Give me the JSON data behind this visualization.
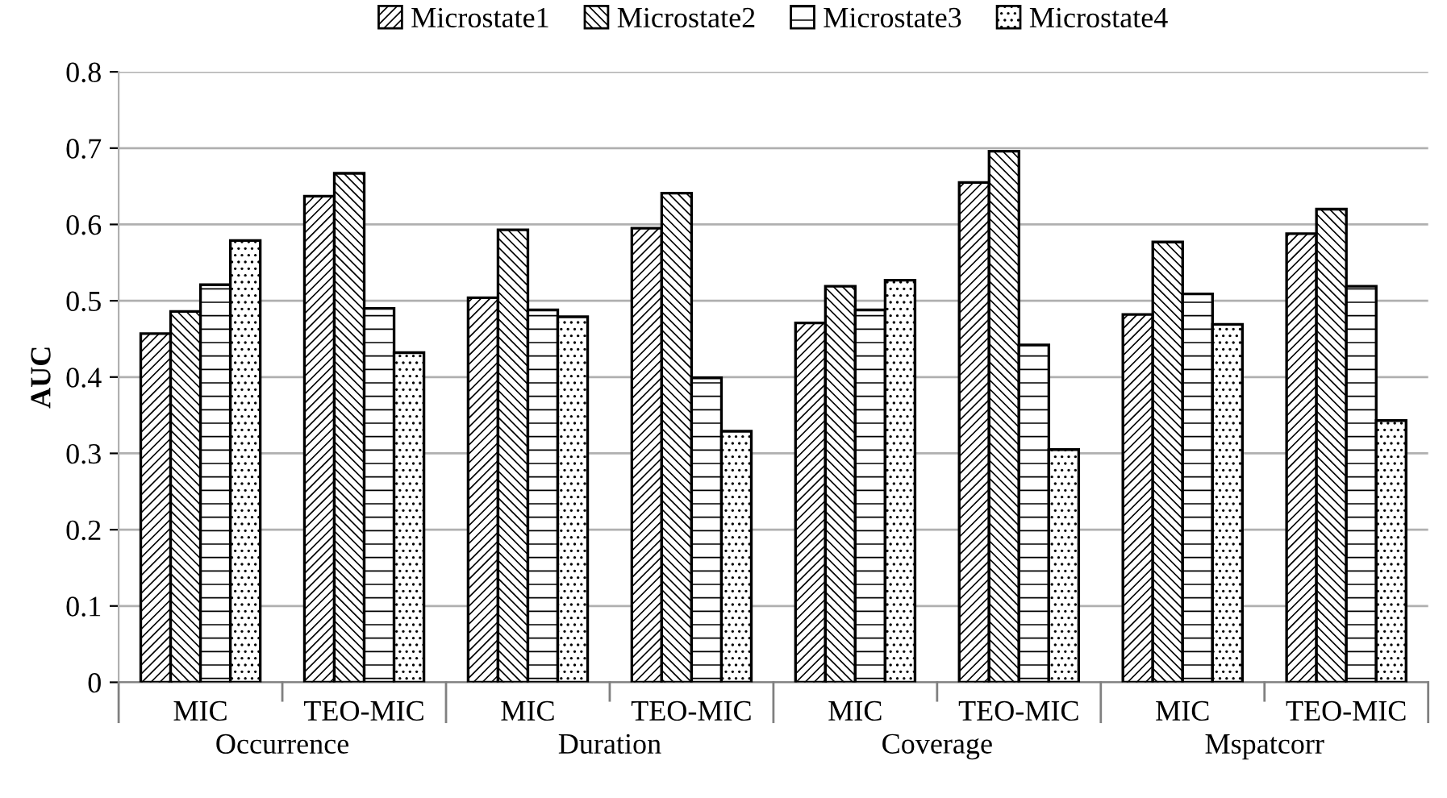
{
  "chart_data": {
    "type": "bar",
    "ylabel": "AUC",
    "categories": [
      "MIC",
      "TEO-MIC",
      "MIC",
      "TEO-MIC",
      "MIC",
      "TEO-MIC",
      "MIC",
      "TEO-MIC"
    ],
    "annotations": [
      "Occurrence",
      "Duration",
      "Coverage",
      "Mspatcorr"
    ],
    "series": [
      {
        "name": "Microstate1",
        "color": "#000000",
        "values": [
          0.457,
          0.637,
          0.504,
          0.595,
          0.471,
          0.655,
          0.482,
          0.588
        ]
      },
      {
        "name": "Microstate2",
        "color": "#000000",
        "values": [
          0.486,
          0.667,
          0.593,
          0.641,
          0.519,
          0.696,
          0.577,
          0.62
        ]
      },
      {
        "name": "Microstate3",
        "color": "#000000",
        "values": [
          0.521,
          0.49,
          0.488,
          0.399,
          0.488,
          0.442,
          0.509,
          0.519
        ]
      },
      {
        "name": "Microstate4",
        "color": "#000000",
        "values": [
          0.579,
          0.432,
          0.479,
          0.329,
          0.527,
          0.305,
          0.469,
          0.343
        ]
      }
    ],
    "ylim": [
      0,
      0.8
    ],
    "yticks": [
      0,
      0.1,
      0.2,
      0.3,
      0.4,
      0.5,
      0.6,
      0.7,
      0.8
    ],
    "grid": "y",
    "legend": "top"
  }
}
